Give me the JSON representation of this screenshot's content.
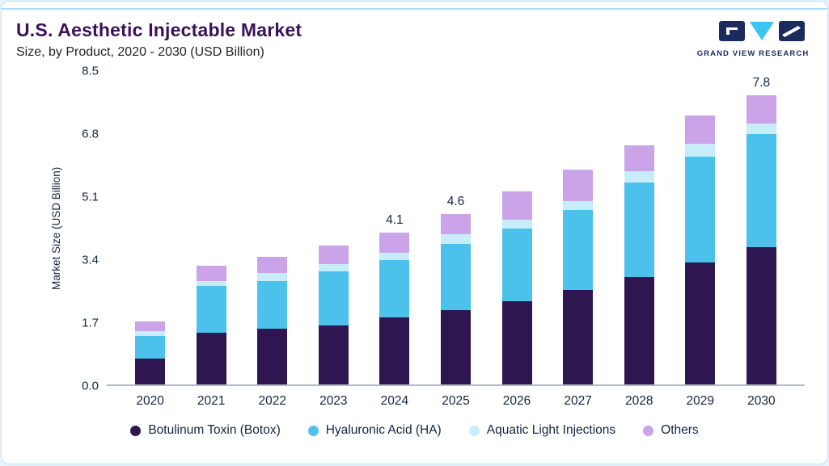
{
  "header": {
    "title": "U.S. Aesthetic Injectable Market",
    "subtitle": "Size, by Product, 2020 - 2030 (USD Billion)"
  },
  "logo": {
    "text": "GRAND VIEW RESEARCH",
    "navy": "#1c2b5e",
    "cyan": "#3bc5f0"
  },
  "colors": {
    "card_background": "#ffffff",
    "page_background": "#e8f2fa",
    "accent_line": "#a9ddf3",
    "title": "#3a1259",
    "axis_text": "#16243f"
  },
  "chart_data": {
    "type": "bar",
    "stacked": true,
    "title": "U.S. Aesthetic Injectable Market Size, by Product, 2020 - 2030 (USD Billion)",
    "xlabel": "",
    "ylabel": "Market Size (USD Billion)",
    "ylim": [
      0,
      8.5
    ],
    "yticks": [
      0.0,
      1.7,
      3.4,
      5.1,
      6.8,
      8.5
    ],
    "grid": false,
    "legend_position": "bottom",
    "categories": [
      "2020",
      "2021",
      "2022",
      "2023",
      "2024",
      "2025",
      "2026",
      "2027",
      "2028",
      "2029",
      "2030"
    ],
    "series": [
      {
        "name": "Botulinum Toxin (Botox)",
        "color": "#2e1650",
        "values": [
          0.7,
          1.4,
          1.5,
          1.6,
          1.8,
          2.0,
          2.25,
          2.55,
          2.9,
          3.3,
          3.7
        ]
      },
      {
        "name": "Hyaluronic Acid (HA)",
        "color": "#4cc1ec",
        "values": [
          0.6,
          1.25,
          1.3,
          1.45,
          1.55,
          1.8,
          1.95,
          2.15,
          2.55,
          2.85,
          3.05
        ]
      },
      {
        "name": "Aquatic Light Injections",
        "color": "#c7ecfa",
        "values": [
          0.15,
          0.15,
          0.2,
          0.2,
          0.2,
          0.25,
          0.25,
          0.25,
          0.3,
          0.35,
          0.3
        ]
      },
      {
        "name": "Others",
        "color": "#cba3e8",
        "values": [
          0.25,
          0.4,
          0.45,
          0.5,
          0.55,
          0.55,
          0.75,
          0.85,
          0.7,
          0.75,
          0.75
        ]
      }
    ],
    "bar_labels": [
      "",
      "",
      "",
      "",
      "4.1",
      "4.6",
      "",
      "",
      "",
      "",
      "7.8"
    ]
  }
}
